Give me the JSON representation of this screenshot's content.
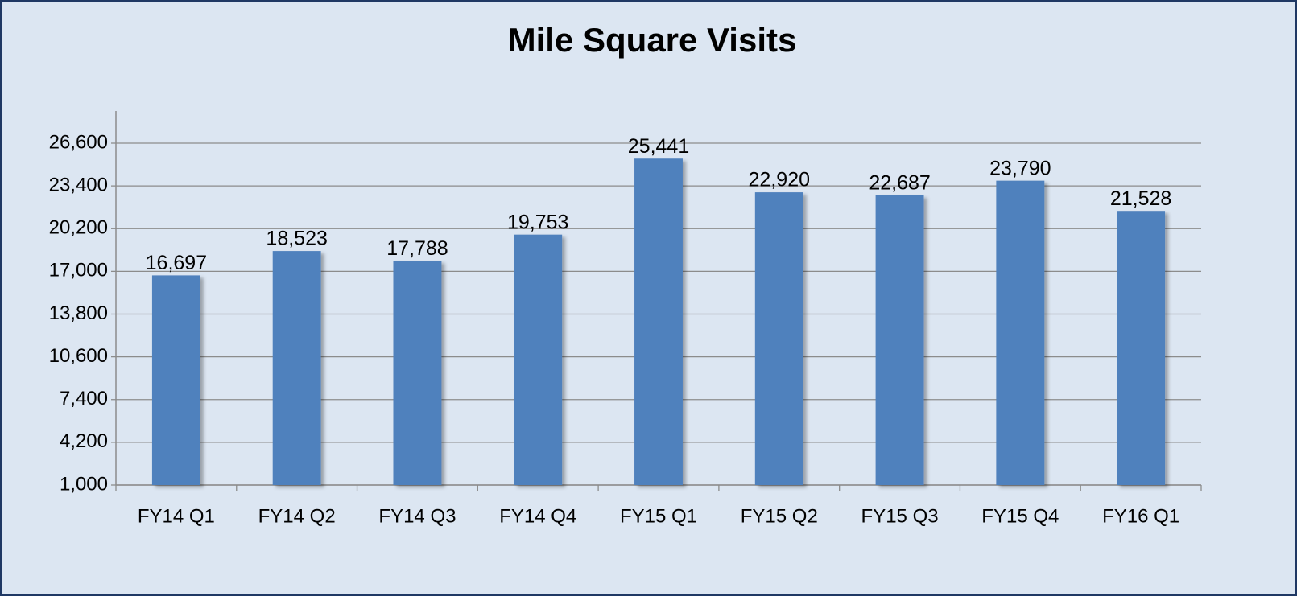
{
  "chart_data": {
    "type": "bar",
    "title": "Mile Square Visits",
    "categories": [
      "FY14 Q1",
      "FY14 Q2",
      "FY14 Q3",
      "FY14 Q4",
      "FY15 Q1",
      "FY15 Q2",
      "FY15 Q3",
      "FY15 Q4",
      "FY16 Q1"
    ],
    "values": [
      16697,
      18523,
      17788,
      19753,
      25441,
      22920,
      22687,
      23790,
      21528
    ],
    "value_labels": [
      "16,697",
      "18,523",
      "17,788",
      "19,753",
      "25,441",
      "22,920",
      "22,687",
      "23,790",
      "21,528"
    ],
    "color": "#4f81bd",
    "ylim": [
      1000,
      26600
    ],
    "yticks": [
      {
        "value": 1000,
        "label": "1,000"
      },
      {
        "value": 4200,
        "label": "4,200"
      },
      {
        "value": 7400,
        "label": "7,400"
      },
      {
        "value": 10600,
        "label": "10,600"
      },
      {
        "value": 13800,
        "label": "13,800"
      },
      {
        "value": 17000,
        "label": "17,000"
      },
      {
        "value": 20200,
        "label": "20,200"
      },
      {
        "value": 23400,
        "label": "23,400"
      },
      {
        "value": 26600,
        "label": "26,600"
      }
    ],
    "grid": true
  }
}
